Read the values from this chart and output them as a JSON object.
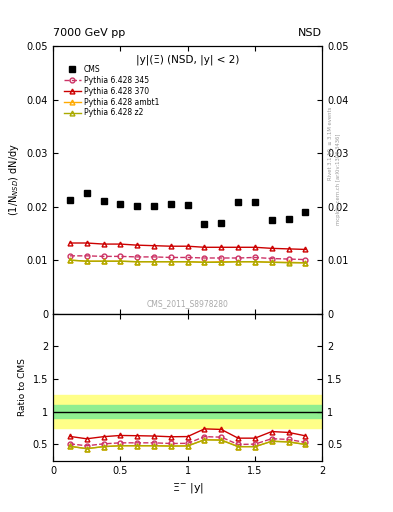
{
  "title_left": "7000 GeV pp",
  "title_right": "NSD",
  "annotation": "|y|(Ξ) (NSD, |y| < 2)",
  "watermark": "CMS_2011_S8978280",
  "right_label1": "Rivet 3.1.10, ≥ 3.1M events",
  "right_label2": "mcplots.cern.ch [arXiv:1306.3436]",
  "ylabel_main": "(1/N$_{NSD}$) dN/dy",
  "ylabel_ratio": "Ratio to CMS",
  "xlabel": "Ξ$^{-}$ |y|",
  "cms_x": [
    0.125,
    0.25,
    0.375,
    0.5,
    0.625,
    0.75,
    0.875,
    1.0,
    1.125,
    1.25,
    1.375,
    1.5,
    1.625,
    1.75,
    1.875
  ],
  "cms_y": [
    0.0212,
    0.0225,
    0.021,
    0.0204,
    0.0202,
    0.0202,
    0.0204,
    0.0203,
    0.0168,
    0.017,
    0.0208,
    0.0208,
    0.0175,
    0.0177,
    0.019
  ],
  "p345_x": [
    0.125,
    0.25,
    0.375,
    0.5,
    0.625,
    0.75,
    0.875,
    1.0,
    1.125,
    1.25,
    1.375,
    1.5,
    1.625,
    1.75,
    1.875
  ],
  "p345_y": [
    0.0108,
    0.0108,
    0.0107,
    0.0107,
    0.0106,
    0.0106,
    0.0105,
    0.0105,
    0.0104,
    0.0104,
    0.0104,
    0.0105,
    0.0103,
    0.0102,
    0.0101
  ],
  "p370_x": [
    0.125,
    0.25,
    0.375,
    0.5,
    0.625,
    0.75,
    0.875,
    1.0,
    1.125,
    1.25,
    1.375,
    1.5,
    1.625,
    1.75,
    1.875
  ],
  "p370_y": [
    0.0132,
    0.0132,
    0.013,
    0.013,
    0.0128,
    0.0127,
    0.0126,
    0.0126,
    0.0124,
    0.0124,
    0.0124,
    0.0124,
    0.0122,
    0.0121,
    0.012
  ],
  "pambt1_x": [
    0.125,
    0.25,
    0.375,
    0.5,
    0.625,
    0.75,
    0.875,
    1.0,
    1.125,
    1.25,
    1.375,
    1.5,
    1.625,
    1.75,
    1.875
  ],
  "pambt1_y": [
    0.01,
    0.0098,
    0.0098,
    0.0098,
    0.0097,
    0.0097,
    0.0097,
    0.0097,
    0.0096,
    0.0097,
    0.0097,
    0.0097,
    0.0096,
    0.0096,
    0.0095
  ],
  "pz2_x": [
    0.125,
    0.25,
    0.375,
    0.5,
    0.625,
    0.75,
    0.875,
    1.0,
    1.125,
    1.25,
    1.375,
    1.5,
    1.625,
    1.75,
    1.875
  ],
  "pz2_y": [
    0.01,
    0.0098,
    0.0098,
    0.0098,
    0.0097,
    0.0097,
    0.0097,
    0.0097,
    0.0096,
    0.0096,
    0.0097,
    0.0097,
    0.0096,
    0.0095,
    0.0095
  ],
  "ylim_main": [
    0.0,
    0.05
  ],
  "ylim_ratio": [
    0.25,
    2.5
  ],
  "xlim": [
    0.0,
    2.0
  ],
  "color_cms": "#000000",
  "color_345": "#cc3366",
  "color_370": "#cc0000",
  "color_ambt1": "#ffaa00",
  "color_z2": "#aaaa00",
  "band_green": [
    0.9,
    1.1
  ],
  "band_yellow": [
    0.75,
    1.25
  ],
  "band_green_color": "#90ee90",
  "band_yellow_color": "#ffff88",
  "yticks_main": [
    0.0,
    0.01,
    0.02,
    0.03,
    0.04,
    0.05
  ],
  "ytick_labels_main": [
    "0",
    "0.01",
    "0.02",
    "0.03",
    "0.04",
    "0.05"
  ],
  "yticks_ratio": [
    0.5,
    1.0,
    1.5,
    2.0
  ],
  "ytick_labels_ratio": [
    "0.5",
    "1",
    "1.5",
    "2"
  ]
}
